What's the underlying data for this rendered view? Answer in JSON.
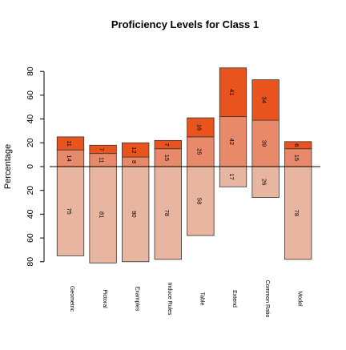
{
  "chart_data": {
    "type": "bar",
    "title": "Proficiency Levels for Class 1",
    "ylabel": "Percentage",
    "xlabel": "",
    "ylim": [
      -80,
      80
    ],
    "y_ticks": [
      80,
      60,
      40,
      20,
      0,
      20,
      40,
      60,
      80
    ],
    "stacking": "diverging",
    "categories": [
      "Geometric",
      "Pictoral",
      "Examples",
      "Induce Rules",
      "Table",
      "Extend",
      "Common Ratio",
      "Model"
    ],
    "series": [
      {
        "direction": "down",
        "color": "#E8B5A0",
        "values": [
          75,
          81,
          80,
          78,
          58,
          17,
          26,
          78
        ]
      },
      {
        "direction": "up",
        "color": "#E8896A",
        "values": [
          14,
          11,
          8,
          15,
          25,
          42,
          39,
          15
        ]
      },
      {
        "direction": "up",
        "color": "#E8531E",
        "values": [
          11,
          7,
          12,
          7,
          16,
          41,
          34,
          6
        ]
      }
    ],
    "grid": false,
    "legend": "none"
  }
}
